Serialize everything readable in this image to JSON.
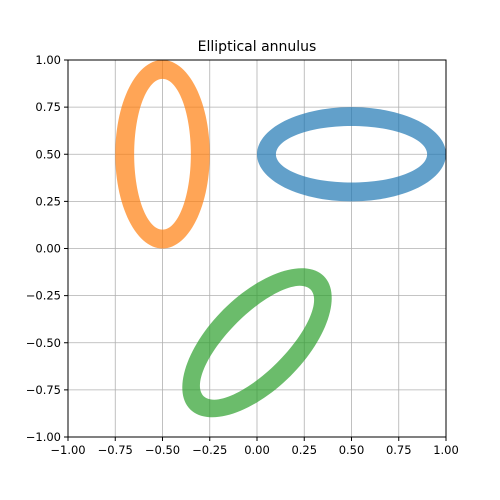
{
  "chart_data": {
    "type": "area",
    "title": "Elliptical annulus",
    "xlabel": "",
    "ylabel": "",
    "xlim": [
      -1.0,
      1.0
    ],
    "ylim": [
      -1.0,
      1.0
    ],
    "grid": true,
    "xticks": [
      "−1.00",
      "−0.75",
      "−0.50",
      "−0.25",
      "0.00",
      "0.25",
      "0.50",
      "0.75",
      "1.00"
    ],
    "xtick_values": [
      -1.0,
      -0.75,
      -0.5,
      -0.25,
      0.0,
      0.25,
      0.5,
      0.75,
      1.0
    ],
    "yticks": [
      "−1.00",
      "−0.75",
      "−0.50",
      "−0.25",
      "0.00",
      "0.25",
      "0.50",
      "0.75",
      "1.00"
    ],
    "ytick_values": [
      -1.0,
      -0.75,
      -0.5,
      -0.25,
      0.0,
      0.25,
      0.5,
      0.75,
      1.0
    ],
    "series": [
      {
        "center": [
          0.5,
          0.5
        ],
        "outer_radii": [
          0.5,
          0.25
        ],
        "inner_radii": [
          0.4,
          0.15
        ],
        "rotation_deg": 0,
        "color": "#1f77b4",
        "alpha": 0.7
      },
      {
        "center": [
          -0.5,
          0.5
        ],
        "outer_radii": [
          0.25,
          0.5
        ],
        "inner_radii": [
          0.15,
          0.4
        ],
        "rotation_deg": 0,
        "color": "#ff7f0e",
        "alpha": 0.7
      },
      {
        "center": [
          0.0,
          -0.5
        ],
        "outer_radii": [
          0.5,
          0.25
        ],
        "inner_radii": [
          0.4,
          0.15
        ],
        "rotation_deg": 45,
        "color": "#2ca02c",
        "alpha": 0.7
      }
    ]
  }
}
